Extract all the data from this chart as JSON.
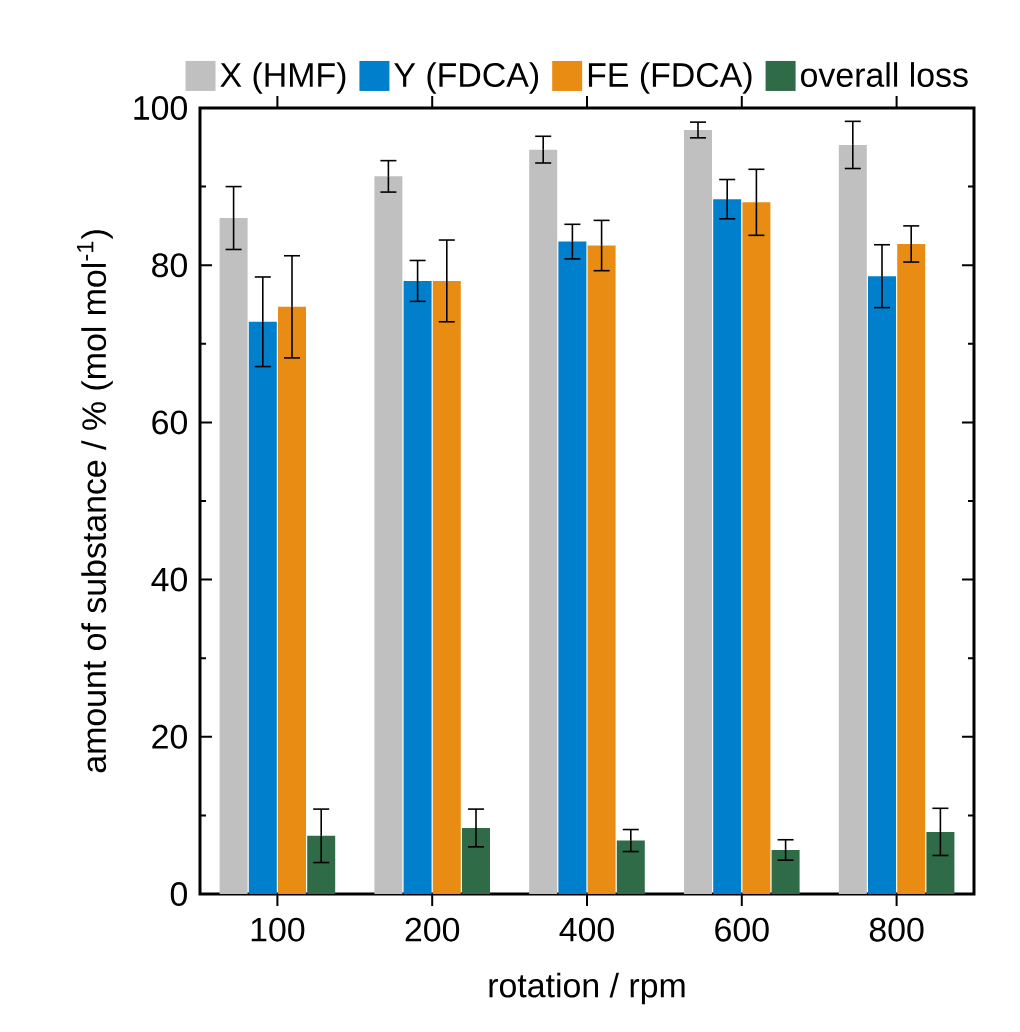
{
  "chart_data": {
    "type": "bar",
    "xlabel": "rotation / rpm",
    "ylabel": "amount of substance / % (mol mol$^{-1}$)",
    "categories": [
      "100",
      "200",
      "400",
      "600",
      "800"
    ],
    "series": [
      {
        "name": "X (HMF)",
        "color": "#c0c0c0",
        "values": [
          86,
          91.3,
          94.7,
          97.2,
          95.3
        ],
        "errors": [
          4,
          2,
          1.7,
          1,
          3
        ]
      },
      {
        "name": "Y (FDCA)",
        "color": "#0080cc",
        "values": [
          72.8,
          78,
          83,
          88.4,
          78.6
        ],
        "errors": [
          5.7,
          2.6,
          2.2,
          2.5,
          4
        ]
      },
      {
        "name": "FE (FDCA)",
        "color": "#e88c14",
        "values": [
          74.7,
          78,
          82.5,
          88,
          82.7
        ],
        "errors": [
          6.5,
          5.2,
          3.2,
          4.2,
          2.3
        ]
      },
      {
        "name": "overall loss",
        "color": "#2e6b46",
        "values": [
          7.4,
          8.4,
          6.8,
          5.6,
          7.9
        ],
        "errors": [
          3.4,
          2.4,
          1.4,
          1.3,
          3
        ]
      }
    ],
    "ylim": [
      0,
      100
    ],
    "yticks": [
      0,
      20,
      40,
      60,
      80,
      100
    ],
    "legend": "top"
  }
}
